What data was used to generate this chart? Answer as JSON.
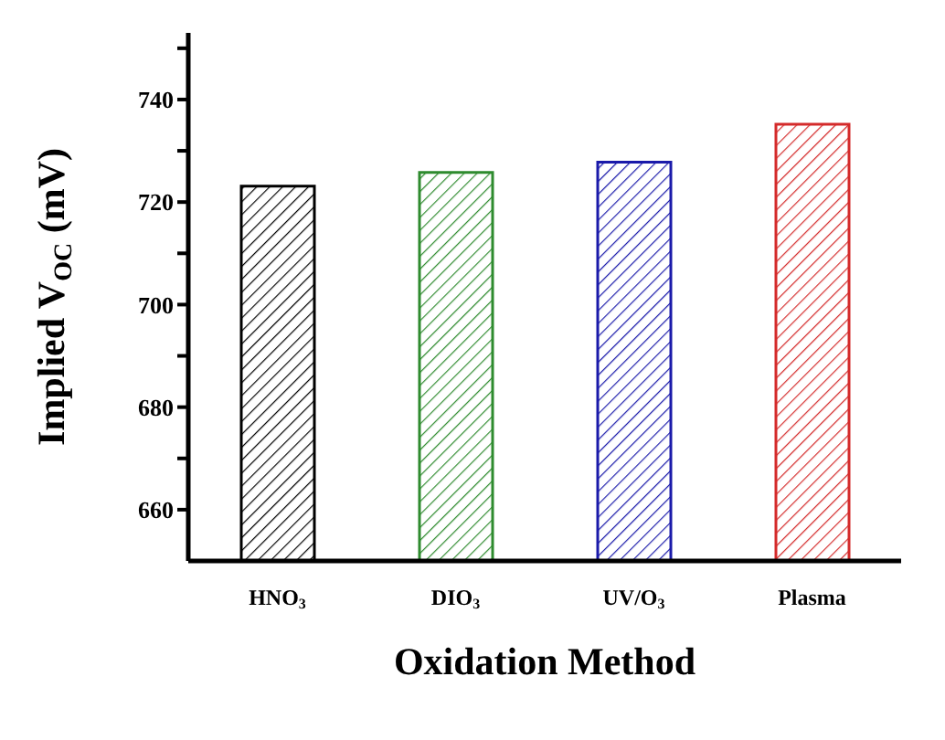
{
  "chart_data": {
    "type": "bar",
    "categories": [
      "HNO$_{3}$",
      "DIO$_{3}$",
      "UV/O$_{3}$",
      "Plasma"
    ],
    "values": [
      723.1,
      725.8,
      727.8,
      735.2
    ],
    "colors": [
      "#000000",
      "#2e8b2e",
      "#1a1aaa",
      "#d42a2a"
    ],
    "xlabel": "Oxidation Method",
    "ylabel": "Implied V$_{OC}$ (mV)",
    "ylim": [
      650,
      753
    ],
    "yticks": [
      660,
      {
        "value": 670,
        "label": null
      },
      680,
      {
        "value": 690,
        "label": null
      },
      700,
      {
        "value": 710,
        "label": null
      },
      720,
      {
        "value": 730,
        "label": null
      },
      740,
      {
        "value": 750,
        "label": null
      }
    ],
    "grid": false,
    "legend": false
  }
}
